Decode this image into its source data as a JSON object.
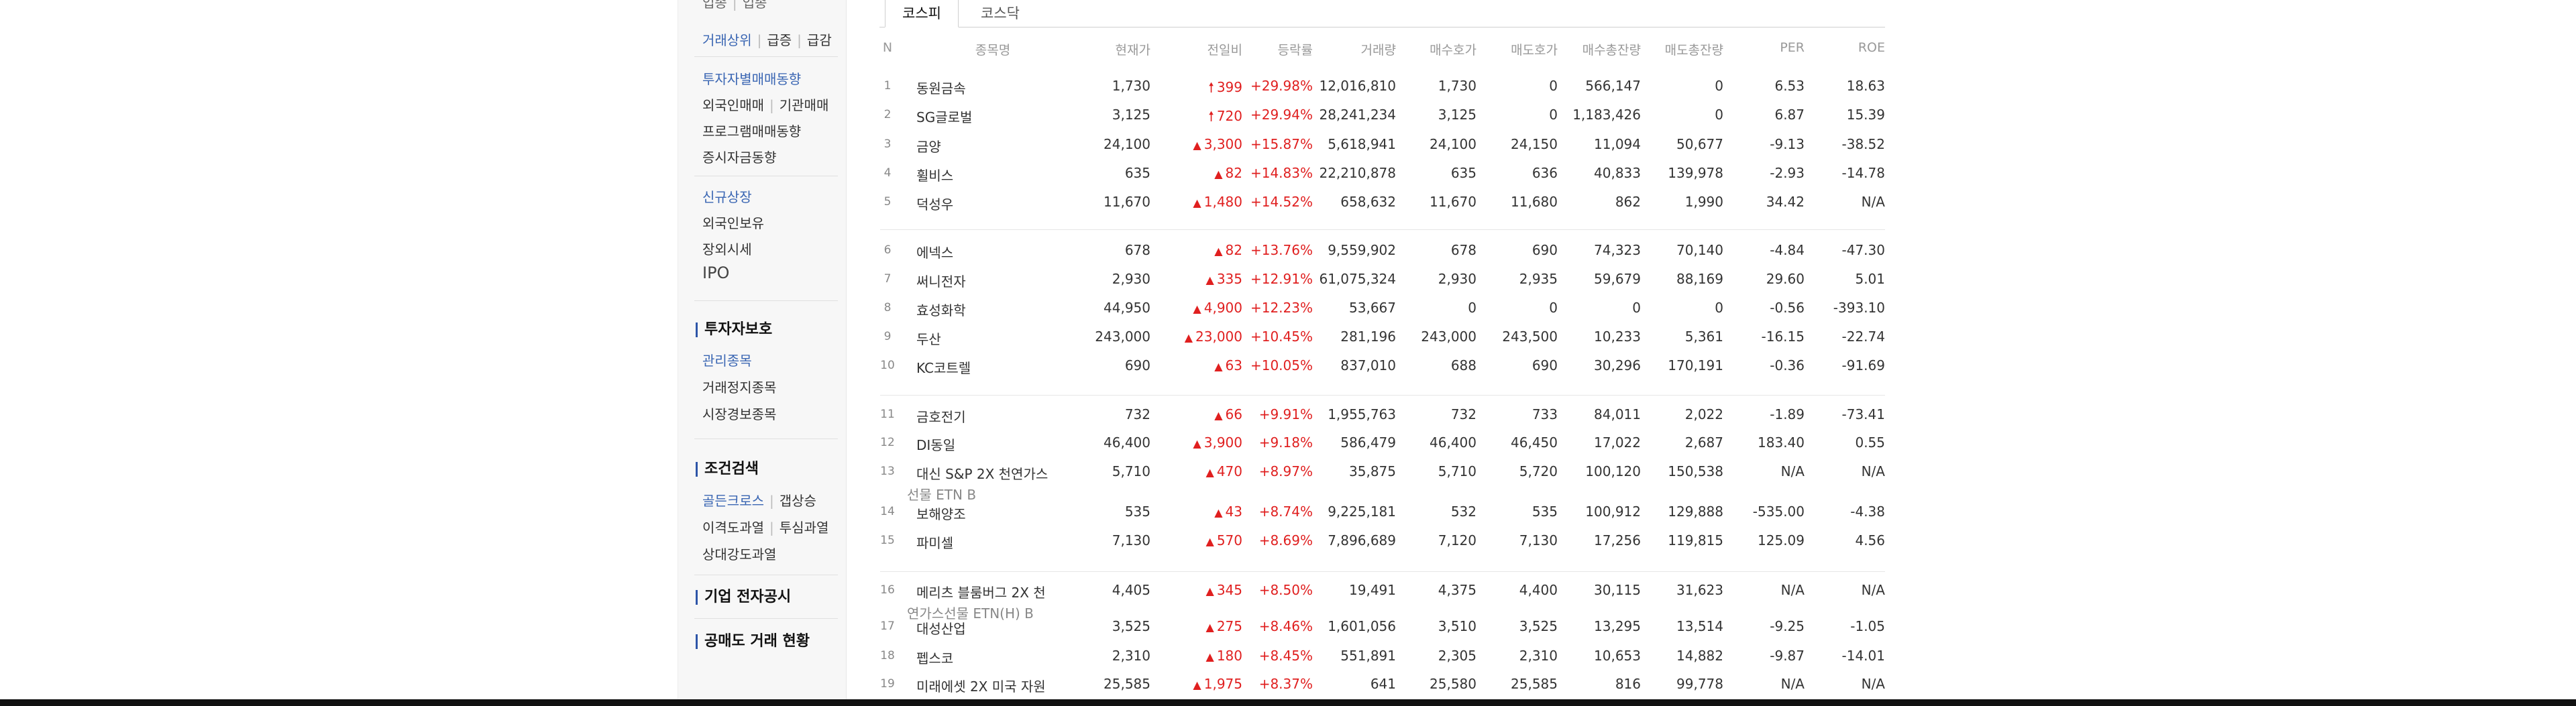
{
  "sidebar": {
    "top_partial": {
      "left": "업종",
      "right": "업종"
    },
    "volume_row": {
      "a": "거래상위",
      "b": "급증",
      "c": "급감"
    },
    "investor_trading": "투자자별매매동향",
    "foreign_inst": {
      "a": "외국인매매",
      "b": "기관매매"
    },
    "program_trading": "프로그램매매동향",
    "deposit_trend": "증시자금동향",
    "new_listing": "신규상장",
    "foreign_holding": "외국인보유",
    "otc_price": "장외시세",
    "ipo": "IPO",
    "investor_protection": "투자자보호",
    "managed_stocks": "관리종목",
    "trading_halt": "거래정지종목",
    "market_warning": "시장경보종목",
    "condition_search": "조건검색",
    "golden_cross_row": {
      "a": "골든크로스",
      "b": "갭상승"
    },
    "disparity_row": {
      "a": "이격도과열",
      "b": "투심과열"
    },
    "relative_strength": "상대강도과열",
    "disclosure": "기업 전자공시",
    "short_selling": "공매도 거래 현황"
  },
  "tabs": [
    {
      "label": "코스피"
    },
    {
      "label": "코스닥"
    }
  ],
  "columns": {
    "n": "N",
    "name": "종목명",
    "price": "현재가",
    "change": "전일비",
    "rate": "등락률",
    "volume": "거래량",
    "bid": "매수호가",
    "ask": "매도호가",
    "bid_total": "매수총잔량",
    "ask_total": "매도총잔량",
    "per": "PER",
    "roe": "ROE"
  },
  "rows": [
    {
      "n": "1",
      "name": "동원금속",
      "price": "1,730",
      "arrow": "🠕",
      "change": "399",
      "rate": "+29.98%",
      "volume": "12,016,810",
      "bid": "1,730",
      "ask": "0",
      "bid_total": "566,147",
      "ask_total": "0",
      "per": "6.53",
      "roe": "18.63"
    },
    {
      "n": "2",
      "name": "SG글로벌",
      "price": "3,125",
      "arrow": "🠕",
      "change": "720",
      "rate": "+29.94%",
      "volume": "28,241,234",
      "bid": "3,125",
      "ask": "0",
      "bid_total": "1,183,426",
      "ask_total": "0",
      "per": "6.87",
      "roe": "15.39"
    },
    {
      "n": "3",
      "name": "금양",
      "price": "24,100",
      "arrow": "▲",
      "change": "3,300",
      "rate": "+15.87%",
      "volume": "5,618,941",
      "bid": "24,100",
      "ask": "24,150",
      "bid_total": "11,094",
      "ask_total": "50,677",
      "per": "-9.13",
      "roe": "-38.52"
    },
    {
      "n": "4",
      "name": "휠비스",
      "price": "635",
      "arrow": "▲",
      "change": "82",
      "rate": "+14.83%",
      "volume": "22,210,878",
      "bid": "635",
      "ask": "636",
      "bid_total": "40,833",
      "ask_total": "139,978",
      "per": "-2.93",
      "roe": "-14.78"
    },
    {
      "n": "5",
      "name": "덕성우",
      "price": "11,670",
      "arrow": "▲",
      "change": "1,480",
      "rate": "+14.52%",
      "volume": "658,632",
      "bid": "11,670",
      "ask": "11,680",
      "bid_total": "862",
      "ask_total": "1,990",
      "per": "34.42",
      "roe": "N/A"
    },
    {
      "n": "6",
      "name": "에넥스",
      "price": "678",
      "arrow": "▲",
      "change": "82",
      "rate": "+13.76%",
      "volume": "9,559,902",
      "bid": "678",
      "ask": "690",
      "bid_total": "74,323",
      "ask_total": "70,140",
      "per": "-4.84",
      "roe": "-47.30"
    },
    {
      "n": "7",
      "name": "써니전자",
      "price": "2,930",
      "arrow": "▲",
      "change": "335",
      "rate": "+12.91%",
      "volume": "61,075,324",
      "bid": "2,930",
      "ask": "2,935",
      "bid_total": "59,679",
      "ask_total": "88,169",
      "per": "29.60",
      "roe": "5.01"
    },
    {
      "n": "8",
      "name": "효성화학",
      "price": "44,950",
      "arrow": "▲",
      "change": "4,900",
      "rate": "+12.23%",
      "volume": "53,667",
      "bid": "0",
      "ask": "0",
      "bid_total": "0",
      "ask_total": "0",
      "per": "-0.56",
      "roe": "-393.10"
    },
    {
      "n": "9",
      "name": "두산",
      "price": "243,000",
      "arrow": "▲",
      "change": "23,000",
      "rate": "+10.45%",
      "volume": "281,196",
      "bid": "243,000",
      "ask": "243,500",
      "bid_total": "10,233",
      "ask_total": "5,361",
      "per": "-16.15",
      "roe": "-22.74"
    },
    {
      "n": "10",
      "name": "KC코트렐",
      "price": "690",
      "arrow": "▲",
      "change": "63",
      "rate": "+10.05%",
      "volume": "837,010",
      "bid": "688",
      "ask": "690",
      "bid_total": "30,296",
      "ask_total": "170,191",
      "per": "-0.36",
      "roe": "-91.69"
    },
    {
      "n": "11",
      "name": "금호전기",
      "price": "732",
      "arrow": "▲",
      "change": "66",
      "rate": "+9.91%",
      "volume": "1,955,763",
      "bid": "732",
      "ask": "733",
      "bid_total": "84,011",
      "ask_total": "2,022",
      "per": "-1.89",
      "roe": "-73.41"
    },
    {
      "n": "12",
      "name": "DI동일",
      "price": "46,400",
      "arrow": "▲",
      "change": "3,900",
      "rate": "+9.18%",
      "volume": "586,479",
      "bid": "46,400",
      "ask": "46,450",
      "bid_total": "17,022",
      "ask_total": "2,687",
      "per": "183.40",
      "roe": "0.55"
    },
    {
      "n": "13",
      "name": "대신 S&P 2X 천연가스",
      "name2": "선물 ETN B",
      "price": "5,710",
      "arrow": "▲",
      "change": "470",
      "rate": "+8.97%",
      "volume": "35,875",
      "bid": "5,710",
      "ask": "5,720",
      "bid_total": "100,120",
      "ask_total": "150,538",
      "per": "N/A",
      "roe": "N/A"
    },
    {
      "n": "14",
      "name": "보해양조",
      "price": "535",
      "arrow": "▲",
      "change": "43",
      "rate": "+8.74%",
      "volume": "9,225,181",
      "bid": "532",
      "ask": "535",
      "bid_total": "100,912",
      "ask_total": "129,888",
      "per": "-535.00",
      "roe": "-4.38"
    },
    {
      "n": "15",
      "name": "파미셀",
      "price": "7,130",
      "arrow": "▲",
      "change": "570",
      "rate": "+8.69%",
      "volume": "7,896,689",
      "bid": "7,120",
      "ask": "7,130",
      "bid_total": "17,256",
      "ask_total": "119,815",
      "per": "125.09",
      "roe": "4.56"
    },
    {
      "n": "16",
      "name": "메리츠 블룸버그 2X 천",
      "name2": "연가스선물 ETN(H) B",
      "price": "4,405",
      "arrow": "▲",
      "change": "345",
      "rate": "+8.50%",
      "volume": "19,491",
      "bid": "4,375",
      "ask": "4,400",
      "bid_total": "30,115",
      "ask_total": "31,623",
      "per": "N/A",
      "roe": "N/A"
    },
    {
      "n": "17",
      "name": "대성산업",
      "price": "3,525",
      "arrow": "▲",
      "change": "275",
      "rate": "+8.46%",
      "volume": "1,601,056",
      "bid": "3,510",
      "ask": "3,525",
      "bid_total": "13,295",
      "ask_total": "13,514",
      "per": "-9.25",
      "roe": "-1.05"
    },
    {
      "n": "18",
      "name": "펩스코",
      "price": "2,310",
      "arrow": "▲",
      "change": "180",
      "rate": "+8.45%",
      "volume": "551,891",
      "bid": "2,305",
      "ask": "2,310",
      "bid_total": "10,653",
      "ask_total": "14,882",
      "per": "-9.87",
      "roe": "-14.01"
    },
    {
      "n": "19",
      "name": "미래에셋 2X 미국 자원",
      "price": "25,585",
      "arrow": "▲",
      "change": "1,975",
      "rate": "+8.37%",
      "volume": "641",
      "bid": "25,580",
      "ask": "25,585",
      "bid_total": "816",
      "ask_total": "99,778",
      "per": "N/A",
      "roe": "N/A"
    }
  ]
}
